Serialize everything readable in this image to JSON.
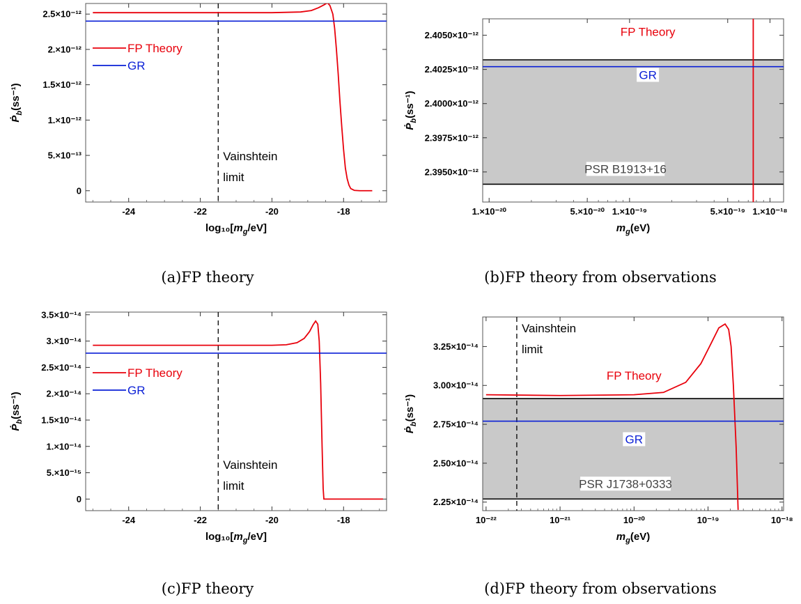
{
  "colors": {
    "fp": "#e8000b",
    "gr": "#0a1fd6",
    "band": "#c9c9c9",
    "band_edge": "#000000",
    "vainshtein": "#000000"
  },
  "chart_data": [
    {
      "id": "a",
      "type": "line",
      "caption": "(a)FP theory",
      "xlabel": "log₁₀[m_g/eV]",
      "ylabel": "Ṗ_b(ss⁻¹)",
      "xlim": [
        -25.2,
        -16.8
      ],
      "ylim": [
        -1.6e-13,
        2.65e-12
      ],
      "xscale": "linear",
      "x_ticks": [
        {
          "v": -24,
          "label": "-24"
        },
        {
          "v": -22,
          "label": "-22"
        },
        {
          "v": -20,
          "label": "-20"
        },
        {
          "v": -18,
          "label": "-18"
        }
      ],
      "y_ticks": [
        {
          "v": 0,
          "label": "0"
        },
        {
          "v": 5e-13,
          "label": "5.×10⁻¹³"
        },
        {
          "v": 1e-12,
          "label": "1.×10⁻¹²"
        },
        {
          "v": 1.5e-12,
          "label": "1.5×10⁻¹²"
        },
        {
          "v": 2e-12,
          "label": "2.×10⁻¹²"
        },
        {
          "v": 2.5e-12,
          "label": "2.5×10⁻¹²"
        }
      ],
      "series": [
        {
          "name": "FP Theory",
          "color_key": "fp",
          "x": [
            -25,
            -20,
            -19.2,
            -18.9,
            -18.7,
            -18.55,
            -18.45,
            -18.38,
            -18.3,
            -18.25,
            -18.2,
            -18.15,
            -18.1,
            -18.05,
            -18.0,
            -17.95,
            -17.9,
            -17.85,
            -17.8,
            -17.7,
            -17.55,
            -17.2
          ],
          "y": [
            2.52e-12,
            2.52e-12,
            2.53e-12,
            2.55e-12,
            2.59e-12,
            2.63e-12,
            2.66e-12,
            2.62e-12,
            2.5e-12,
            2.3e-12,
            2e-12,
            1.65e-12,
            1.25e-12,
            9e-13,
            5.8e-13,
            3.2e-13,
            1.7e-13,
            8e-14,
            3e-14,
            5e-15,
            0.0,
            0.0
          ]
        },
        {
          "name": "GR",
          "color_key": "gr",
          "x": [
            -25.2,
            -16.8
          ],
          "y": [
            2.4e-12,
            2.4e-12
          ]
        }
      ],
      "legend": [
        {
          "label": "FP Theory",
          "color_key": "fp"
        },
        {
          "label": "GR",
          "color_key": "gr"
        }
      ],
      "vline": {
        "x": -21.5,
        "label_lines": [
          "Vainshtein",
          "limit"
        ]
      }
    },
    {
      "id": "b",
      "type": "line",
      "caption": "(b)FP theory from observations",
      "xlabel": "m_g(eV)",
      "ylabel": "Ṗ_b(ss⁻¹)",
      "xlim": [
        9e-21,
        1.25e-18
      ],
      "ylim": [
        2.3928e-12,
        2.4062e-12
      ],
      "xscale": "log",
      "x_ticks": [
        {
          "v": 1e-20,
          "label": "1.×10⁻²⁰"
        },
        {
          "v": 5e-20,
          "label": "5.×10⁻²⁰"
        },
        {
          "v": 1e-19,
          "label": "1.×10⁻¹⁹"
        },
        {
          "v": 5e-19,
          "label": "5.×10⁻¹⁹"
        },
        {
          "v": 1e-18,
          "label": "1.×10⁻¹⁸"
        }
      ],
      "y_ticks": [
        {
          "v": 2.395e-12,
          "label": "2.3950×10⁻¹²"
        },
        {
          "v": 2.3975e-12,
          "label": "2.3975×10⁻¹²"
        },
        {
          "v": 2.4e-12,
          "label": "2.4000×10⁻¹²"
        },
        {
          "v": 2.4025e-12,
          "label": "2.4025×10⁻¹²"
        },
        {
          "v": 2.405e-12,
          "label": "2.4050×10⁻¹²"
        }
      ],
      "band": {
        "y": [
          2.3941e-12,
          2.4032e-12
        ],
        "label": "PSR B1913+16"
      },
      "series": [
        {
          "name": "FP Theory",
          "color_key": "fp",
          "x": [
            7.6e-19,
            7.6e-19
          ],
          "y": [
            2.3928e-12,
            2.4062e-12
          ]
        },
        {
          "name": "GR",
          "color_key": "gr",
          "x": [
            9e-21,
            1.25e-18
          ],
          "y": [
            2.4027e-12,
            2.4027e-12
          ]
        }
      ],
      "labels": [
        {
          "text": "FP Theory",
          "color_key": "fp",
          "x": 1.35e-19,
          "y": 2.4052e-12
        },
        {
          "text": "GR",
          "color_key": "gr",
          "x": 1.35e-19,
          "y": 2.40205e-12,
          "boxed": true
        }
      ]
    },
    {
      "id": "c",
      "type": "line",
      "caption": "(c)FP theory",
      "xlabel": "log₁₀[m_g/eV]",
      "ylabel": "Ṗ_b(ss⁻¹)",
      "xlim": [
        -25.2,
        -16.8
      ],
      "ylim": [
        -2.2e-15,
        3.55e-14
      ],
      "xscale": "linear",
      "x_ticks": [
        {
          "v": -24,
          "label": "-24"
        },
        {
          "v": -22,
          "label": "-22"
        },
        {
          "v": -20,
          "label": "-20"
        },
        {
          "v": -18,
          "label": "-18"
        }
      ],
      "y_ticks": [
        {
          "v": 0,
          "label": "0"
        },
        {
          "v": 5e-15,
          "label": "5.×10⁻¹⁵"
        },
        {
          "v": 1e-14,
          "label": "1.×10⁻¹⁴"
        },
        {
          "v": 1.5e-14,
          "label": "1.5×10⁻¹⁴"
        },
        {
          "v": 2e-14,
          "label": "2.×10⁻¹⁴"
        },
        {
          "v": 2.5e-14,
          "label": "2.5×10⁻¹⁴"
        },
        {
          "v": 3e-14,
          "label": "3.×10⁻¹⁴"
        },
        {
          "v": 3.5e-14,
          "label": "3.5×10⁻¹⁴"
        }
      ],
      "series": [
        {
          "name": "FP Theory",
          "color_key": "fp",
          "x": [
            -25,
            -20,
            -19.6,
            -19.3,
            -19.1,
            -18.95,
            -18.85,
            -18.78,
            -18.72,
            -18.68,
            -18.64,
            -18.6,
            -18.57,
            -18.55,
            -16.9
          ],
          "y": [
            2.92e-14,
            2.92e-14,
            2.93e-14,
            2.97e-14,
            3.05e-14,
            3.18e-14,
            3.31e-14,
            3.38e-14,
            3.32e-14,
            3e-14,
            2.2e-14,
            1e-14,
            2e-15,
            0.0,
            0.0
          ]
        },
        {
          "name": "GR",
          "color_key": "gr",
          "x": [
            -25.2,
            -16.8
          ],
          "y": [
            2.77e-14,
            2.77e-14
          ]
        }
      ],
      "legend": [
        {
          "label": "FP Theory",
          "color_key": "fp"
        },
        {
          "label": "GR",
          "color_key": "gr"
        }
      ],
      "vline": {
        "x": -21.5,
        "label_lines": [
          "Vainshtein",
          "limit"
        ]
      }
    },
    {
      "id": "d",
      "type": "line",
      "caption": "(d)FP theory from observations",
      "xlabel": "m_g(eV)",
      "ylabel": "Ṗ_b(ss⁻¹)",
      "xlim": [
        9e-23,
        1.05e-18
      ],
      "ylim": [
        2.195e-14,
        3.44e-14
      ],
      "xscale": "log",
      "x_ticks": [
        {
          "v": 1e-22,
          "label": "10⁻²²"
        },
        {
          "v": 1e-21,
          "label": "10⁻²¹"
        },
        {
          "v": 1e-20,
          "label": "10⁻²⁰"
        },
        {
          "v": 1e-19,
          "label": "10⁻¹⁹"
        },
        {
          "v": 1e-18,
          "label": "10⁻¹⁸"
        }
      ],
      "y_ticks": [
        {
          "v": 2.25e-14,
          "label": "2.25×10⁻¹⁴"
        },
        {
          "v": 2.5e-14,
          "label": "2.50×10⁻¹⁴"
        },
        {
          "v": 2.75e-14,
          "label": "2.75×10⁻¹⁴"
        },
        {
          "v": 3e-14,
          "label": "3.00×10⁻¹⁴"
        },
        {
          "v": 3.25e-14,
          "label": "3.25×10⁻¹⁴"
        }
      ],
      "band": {
        "y": [
          2.27e-14,
          2.915e-14
        ],
        "label": "PSR J1738+0333"
      },
      "series": [
        {
          "name": "FP Theory",
          "color_key": "fp",
          "x": [
            1e-22,
            1e-21,
            1e-20,
            2.5e-20,
            5e-20,
            8e-20,
            1.1e-19,
            1.4e-19,
            1.7e-19,
            1.9e-19,
            2.05e-19,
            2.2e-19,
            2.4e-19,
            2.55e-19
          ],
          "y": [
            2.94e-14,
            2.935e-14,
            2.94e-14,
            2.955e-14,
            3.02e-14,
            3.14e-14,
            3.27e-14,
            3.37e-14,
            3.395e-14,
            3.36e-14,
            3.25e-14,
            3e-14,
            2.6e-14,
            2.2e-14
          ]
        },
        {
          "name": "GR",
          "color_key": "gr",
          "x": [
            9e-23,
            1.05e-18
          ],
          "y": [
            2.77e-14,
            2.77e-14
          ]
        }
      ],
      "labels": [
        {
          "text": "FP Theory",
          "color_key": "fp",
          "x": 1e-20,
          "y": 3.06e-14
        },
        {
          "text": "GR",
          "color_key": "gr",
          "x": 1e-20,
          "y": 2.65e-14,
          "boxed": true
        }
      ],
      "vline": {
        "x": 2.6e-22,
        "label_lines": [
          "Vainshtein",
          "limit"
        ]
      }
    }
  ]
}
